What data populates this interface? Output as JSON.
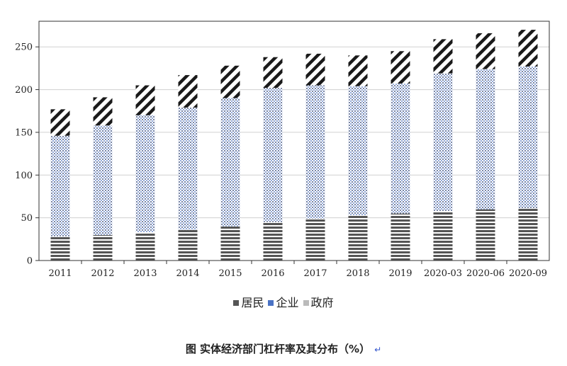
{
  "chart_data": {
    "type": "bar",
    "stacked": true,
    "categories": [
      "2011",
      "2012",
      "2013",
      "2014",
      "2015",
      "2016",
      "2017",
      "2018",
      "2019",
      "2020-03",
      "2020-06",
      "2020-09"
    ],
    "series": [
      {
        "name": "居民",
        "color": "#555555",
        "values": [
          28,
          30,
          33,
          36,
          40,
          45,
          49,
          53,
          55,
          58,
          60,
          61
        ]
      },
      {
        "name": "企业",
        "color": "#4a72c4",
        "values": [
          118,
          128,
          137,
          143,
          150,
          157,
          156,
          151,
          152,
          161,
          164,
          166
        ]
      },
      {
        "name": "政府",
        "color": "#bbbbbb",
        "values": [
          31,
          33,
          35,
          38,
          38,
          36,
          37,
          36,
          38,
          40,
          42,
          43
        ]
      }
    ],
    "yticks": [
      0,
      50,
      100,
      150,
      200,
      250
    ],
    "ylim": [
      0,
      280
    ],
    "grid": true,
    "legend_position": "bottom",
    "title": "图  实体经济部门杠杆率及其分布（%）",
    "caption_mark": "↵"
  }
}
